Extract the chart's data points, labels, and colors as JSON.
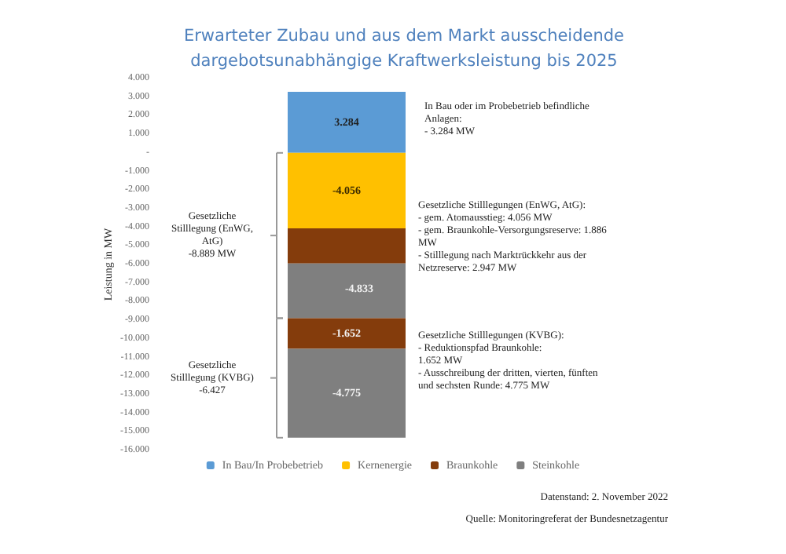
{
  "chart_data": {
    "type": "bar",
    "stacked": true,
    "title": "Erwarteter Zubau und aus dem Markt ausscheidende\ndargebotsunabhängige Kraftwerksleistung bis 2025",
    "ylabel": "Leistung in MW",
    "categories": [
      null
    ],
    "series": [
      {
        "name": "In Bau/In Probebetrieb",
        "color": "#5b9bd5",
        "values": [
          3284
        ],
        "value_labels": [
          "3.284"
        ]
      },
      {
        "name": "Kernenergie",
        "color": "#ffc000",
        "values": [
          -4056
        ],
        "value_labels": [
          "-4.056"
        ]
      },
      {
        "name": "Braunkohle",
        "color": "#843c0c",
        "values": [
          -1886
        ],
        "value_labels": [
          null
        ]
      },
      {
        "name": "Steinkohle",
        "color": "#7f7f7f",
        "values": [
          -2947
        ],
        "value_labels": [
          null
        ]
      },
      {
        "color": "#843c0c",
        "values": [
          -1652
        ],
        "value_labels": [
          "-1.652"
        ]
      },
      {
        "color": "#7f7f7f",
        "values": [
          -4775
        ],
        "value_labels": [
          "-4.775"
        ]
      }
    ],
    "ylim": [
      -16000,
      4000
    ],
    "yticks": [
      {
        "value": 4000,
        "label": "4.000"
      },
      {
        "value": 3000,
        "label": "3.000"
      },
      {
        "value": 2000,
        "label": "2.000"
      },
      {
        "value": 1000,
        "label": "1.000"
      },
      {
        "value": 0,
        "label": "-"
      },
      {
        "value": -1000,
        "label": "-1.000"
      },
      {
        "value": -2000,
        "label": "-2.000"
      },
      {
        "value": -3000,
        "label": "-3.000"
      },
      {
        "value": -4000,
        "label": "-4.000"
      },
      {
        "value": -5000,
        "label": "-5.000"
      },
      {
        "value": -6000,
        "label": "-6.000"
      },
      {
        "value": -7000,
        "label": "-7.000"
      },
      {
        "value": -8000,
        "label": "-8.000"
      },
      {
        "value": -9000,
        "label": "-9.000"
      },
      {
        "value": -10000,
        "label": "-10.000"
      },
      {
        "value": -11000,
        "label": "-11.000"
      },
      {
        "value": -12000,
        "label": "-12.000"
      },
      {
        "value": -13000,
        "label": "-13.000"
      },
      {
        "value": -14000,
        "label": "-14.000"
      },
      {
        "value": -15000,
        "label": "-15.000"
      },
      {
        "value": -16000,
        "label": "-16.000"
      }
    ],
    "grid": false,
    "legend": "bottom",
    "annotations": [
      "Gesetzliche\nStilllegung (EnWG,\nAtG)\n-8.889 MW",
      "Gesetzliche\nStilllegung (KVBG)\n-6.427",
      "In Bau oder im Probebetrieb befindliche\nAnlagen:\n- 3.284 MW",
      "Gesetzliche Stilllegungen (EnWG, AtG):\n- gem. Atomausstieg: 4.056 MW\n- gem. Braunkohle-Versorgungsreserve: 1.886\nMW\n- Stilllegung nach Marktrückkehr aus der\nNetzreserve: 2.947 MW",
      "Gesetzliche Stilllegungen (KVBG):\n- Reduktionspfad Braunkohle:\n1.652 MW\n- Ausschreibung der dritten, vierten, fünften\nund sechsten Runde: 4.775 MW",
      "-4.833",
      "Datenstand: 2. November 2022",
      "Quelle: Monitoringreferat der Bundesnetzagentur"
    ]
  }
}
